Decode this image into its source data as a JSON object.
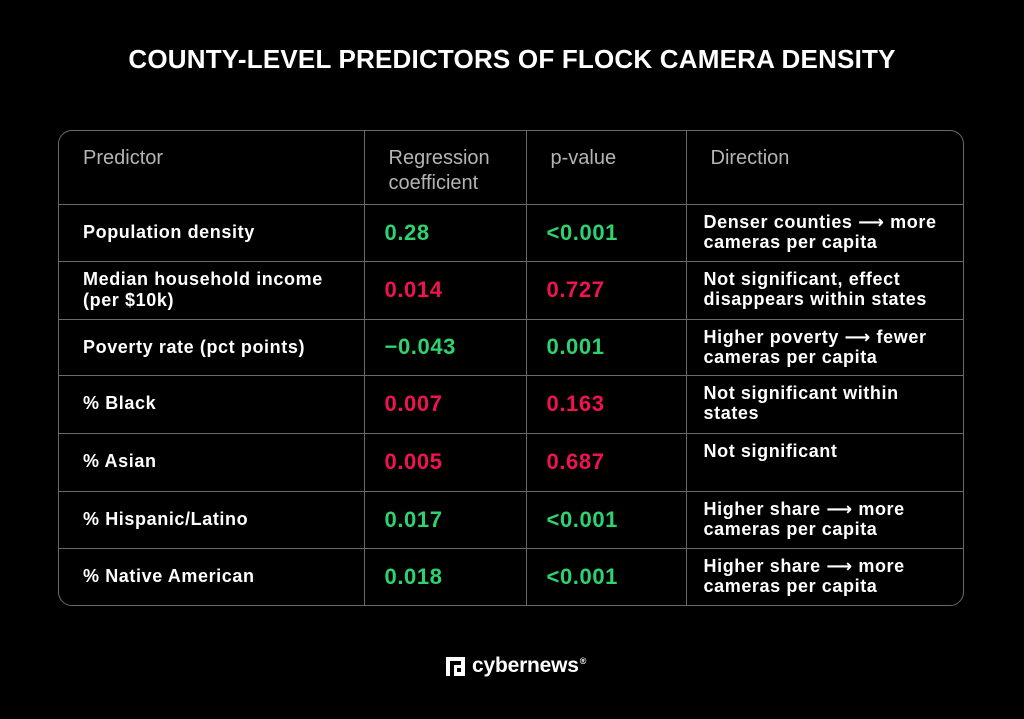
{
  "title": "COUNTY-LEVEL PREDICTORS OF FLOCK CAMERA DENSITY",
  "colors": {
    "positive": "#2ed36f",
    "not_significant": "#f0134f",
    "background": "#000000",
    "border": "#6a6a6a"
  },
  "chart_data": {
    "type": "table",
    "title": "COUNTY-LEVEL PREDICTORS OF FLOCK CAMERA DENSITY",
    "columns": [
      "Predictor",
      "Regression coefficient",
      "p-value",
      "Direction"
    ],
    "rows": [
      {
        "predictor": "Population density",
        "coefficient": "0.28",
        "p_value": "<0.001",
        "direction": "Denser counties ⟶ more cameras per capita",
        "color": "green"
      },
      {
        "predictor": "Median household income (per $10k)",
        "coefficient": "0.014",
        "p_value": "0.727",
        "direction": "Not significant, effect disappears within states",
        "color": "red"
      },
      {
        "predictor": "Poverty rate (pct points)",
        "coefficient": "−0.043",
        "p_value": "0.001",
        "direction": "Higher poverty ⟶ fewer cameras per capita",
        "color": "green"
      },
      {
        "predictor": "% Black",
        "coefficient": "0.007",
        "p_value": "0.163",
        "direction": "Not significant within states",
        "color": "red"
      },
      {
        "predictor": "% Asian",
        "coefficient": "0.005",
        "p_value": "0.687",
        "direction": "Not significant",
        "color": "red"
      },
      {
        "predictor": "% Hispanic/Latino",
        "coefficient": "0.017",
        "p_value": "<0.001",
        "direction": "Higher share ⟶ more cameras per capita",
        "color": "green"
      },
      {
        "predictor": "% Native American",
        "coefficient": "0.018",
        "p_value": "<0.001",
        "direction": "Higher share ⟶ more cameras per capita",
        "color": "green"
      }
    ]
  },
  "brand": {
    "name": "cybernews",
    "mark": "®",
    "icon": "cybernews-logo-icon"
  }
}
